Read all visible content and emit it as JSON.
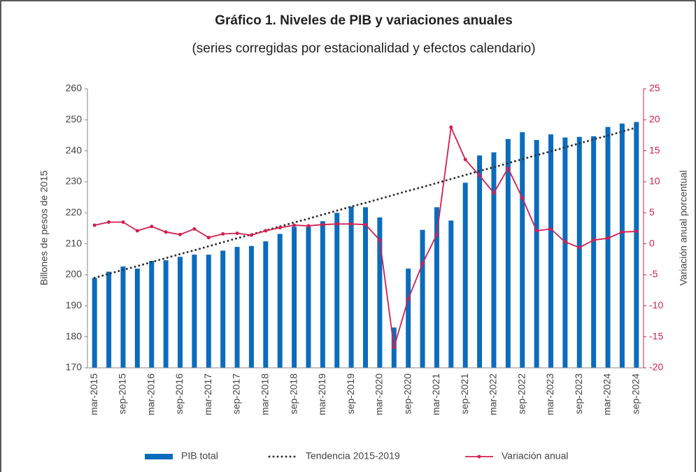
{
  "chart_data": {
    "type": "bar",
    "title": "Gráfico 1. Niveles de PIB y variaciones anuales",
    "subtitle": "(series corregidas por estacionalidad y efectos calendario)",
    "ylabel": "Billones de pesos de 2015",
    "y2label": "Variación anual porcentual",
    "categories": [
      "mar-2015",
      null,
      "sep-2015",
      null,
      "mar-2016",
      null,
      "sep-2016",
      null,
      "mar-2017",
      null,
      "sep-2017",
      null,
      "mar-2018",
      null,
      "sep-2018",
      null,
      "mar-2019",
      null,
      "sep-2019",
      null,
      "mar-2020",
      null,
      "sep-2020",
      null,
      "mar-2021",
      null,
      "sep-2021",
      null,
      "mar-2022",
      null,
      "sep-2022",
      null,
      "mar-2023",
      null,
      "sep-2023",
      null,
      "mar-2024",
      null,
      "sep-2024"
    ],
    "ylim": [
      170,
      260
    ],
    "yticks": [
      170,
      180,
      190,
      200,
      210,
      220,
      230,
      240,
      250,
      260
    ],
    "y2lim": [
      -20,
      25
    ],
    "y2ticks": [
      -20,
      -15,
      -10,
      -5,
      0,
      5,
      10,
      15,
      20,
      25
    ],
    "series": [
      {
        "name": "PIB total",
        "type": "bar",
        "color": "#0b6cbd",
        "axis": "y",
        "values": [
          199,
          201,
          202.7,
          202,
          204.5,
          204.7,
          205.8,
          206.5,
          206.5,
          207.8,
          209,
          209.3,
          210.8,
          213.2,
          215.5,
          215.5,
          217.3,
          220,
          222,
          221.8,
          218.5,
          183,
          202,
          214.5,
          221.8,
          217.5,
          229.7,
          238.5,
          239.5,
          243.8,
          246,
          243.5,
          245.3,
          244.3,
          244.5,
          244.7,
          247.7,
          248.8,
          249.3
        ]
      },
      {
        "name": "Tendencia 2015-2019",
        "type": "line",
        "dash": "dotted",
        "color": "#333333",
        "axis": "y",
        "values": [
          199.0,
          200.3,
          201.6,
          202.8,
          204.1,
          205.4,
          206.7,
          207.9,
          209.2,
          210.5,
          211.8,
          213.0,
          214.3,
          215.6,
          216.9,
          218.1,
          219.4,
          220.7,
          222.0,
          223.2,
          224.5,
          225.8,
          227.1,
          228.3,
          229.6,
          230.9,
          232.2,
          233.5,
          234.7,
          236.0,
          237.3,
          238.6,
          239.8,
          241.1,
          242.4,
          243.7,
          244.9,
          246.2,
          247.5
        ]
      },
      {
        "name": "Variación anual",
        "type": "line",
        "marker": true,
        "color": "#d2204f",
        "axis": "y2",
        "values": [
          3.0,
          3.5,
          3.5,
          2.1,
          2.8,
          1.9,
          1.5,
          2.4,
          1.0,
          1.6,
          1.7,
          1.4,
          2.1,
          2.6,
          3.0,
          2.9,
          3.1,
          3.2,
          3.2,
          3.1,
          0.6,
          -16.7,
          -8.9,
          -3.2,
          1.5,
          18.8,
          13.6,
          11.0,
          8.2,
          12.2,
          7.4,
          2.1,
          2.4,
          0.3,
          -0.6,
          0.6,
          0.9,
          1.9,
          2.0
        ]
      }
    ]
  }
}
